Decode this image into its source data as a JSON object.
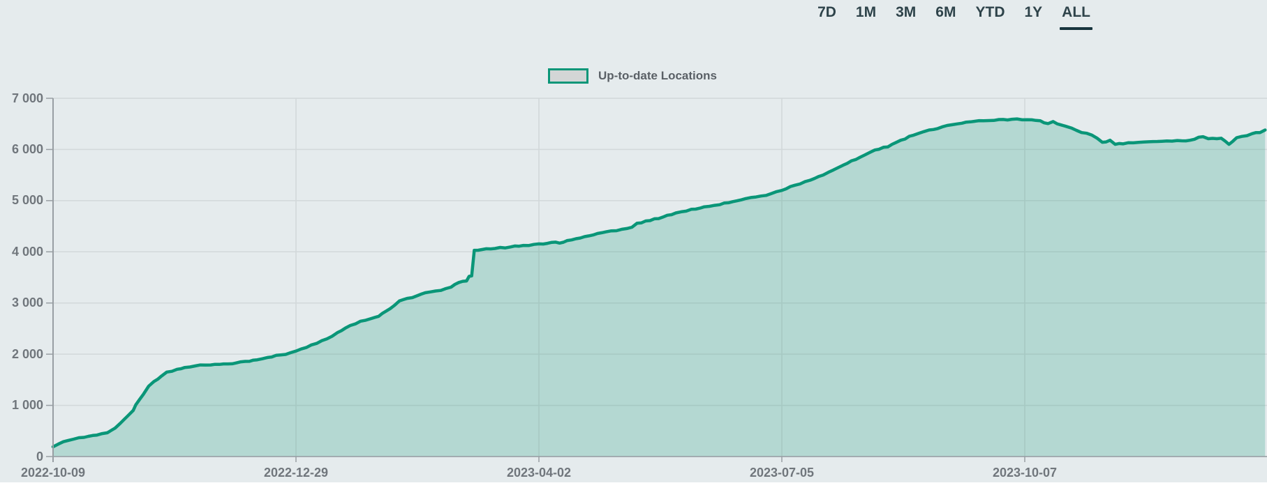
{
  "range_selector": {
    "options": [
      "7D",
      "1M",
      "3M",
      "6M",
      "YTD",
      "1Y",
      "ALL"
    ],
    "selected": "ALL"
  },
  "legend": {
    "label": "Up-to-date Locations"
  },
  "colors": {
    "background": "#e5ebed",
    "line": "#0a9678",
    "area_fill": "rgba(9,148,112,0.22)",
    "gridline": "#d2d8da",
    "axis_line": "#989ea3",
    "axis_text": "#70767c",
    "button_text": "#2e434a",
    "selected_underline": "#17343d",
    "legend_text": "#5a6066",
    "legend_swatch_fill": "#d3d6d6"
  },
  "chart_data": {
    "type": "area",
    "title": "",
    "legend_entries": [
      "Up-to-date Locations"
    ],
    "legend_position": "top-center",
    "grid": true,
    "xlabel": "",
    "ylabel": "",
    "ylim": [
      0,
      7000
    ],
    "y_tick_values": [
      0,
      1000,
      2000,
      3000,
      4000,
      5000,
      6000,
      7000
    ],
    "y_tick_labels": [
      "0",
      "1 000",
      "2 000",
      "3 000",
      "4 000",
      "5 000",
      "6 000",
      "7 000"
    ],
    "x_tick_labels": [
      "2022-10-09",
      "2022-12-29",
      "2023-04-02",
      "2023-07-05",
      "2023-10-07"
    ],
    "x_tick_index": [
      0,
      94,
      188,
      282,
      376
    ],
    "x_index_max": 469,
    "series": [
      {
        "name": "Up-to-date Locations",
        "points": [
          [
            0,
            190
          ],
          [
            4,
            290
          ],
          [
            8,
            340
          ],
          [
            12,
            375
          ],
          [
            17,
            420
          ],
          [
            21,
            465
          ],
          [
            24,
            555
          ],
          [
            26,
            650
          ],
          [
            29,
            800
          ],
          [
            31,
            900
          ],
          [
            32,
            1010
          ],
          [
            35,
            1220
          ],
          [
            37,
            1375
          ],
          [
            39,
            1465
          ],
          [
            42,
            1575
          ],
          [
            44,
            1650
          ],
          [
            48,
            1705
          ],
          [
            51,
            1740
          ],
          [
            55,
            1770
          ],
          [
            61,
            1790
          ],
          [
            66,
            1810
          ],
          [
            71,
            1830
          ],
          [
            76,
            1860
          ],
          [
            79,
            1890
          ],
          [
            83,
            1935
          ],
          [
            88,
            1985
          ],
          [
            92,
            2030
          ],
          [
            94,
            2060
          ],
          [
            98,
            2130
          ],
          [
            102,
            2210
          ],
          [
            106,
            2300
          ],
          [
            110,
            2420
          ],
          [
            115,
            2560
          ],
          [
            119,
            2645
          ],
          [
            123,
            2695
          ],
          [
            126,
            2740
          ],
          [
            129,
            2845
          ],
          [
            132,
            2950
          ],
          [
            134,
            3040
          ],
          [
            137,
            3090
          ],
          [
            141,
            3145
          ],
          [
            144,
            3200
          ],
          [
            150,
            3245
          ],
          [
            154,
            3310
          ],
          [
            157,
            3400
          ],
          [
            160,
            3430
          ],
          [
            161,
            3520
          ],
          [
            162,
            3530
          ],
          [
            163,
            4030
          ],
          [
            166,
            4045
          ],
          [
            171,
            4065
          ],
          [
            177,
            4095
          ],
          [
            182,
            4125
          ],
          [
            188,
            4155
          ],
          [
            193,
            4185
          ],
          [
            196,
            4170
          ],
          [
            199,
            4220
          ],
          [
            204,
            4270
          ],
          [
            209,
            4330
          ],
          [
            214,
            4390
          ],
          [
            220,
            4440
          ],
          [
            224,
            4480
          ],
          [
            226,
            4560
          ],
          [
            231,
            4610
          ],
          [
            236,
            4680
          ],
          [
            241,
            4760
          ],
          [
            247,
            4830
          ],
          [
            252,
            4880
          ],
          [
            258,
            4920
          ],
          [
            263,
            4980
          ],
          [
            268,
            5040
          ],
          [
            274,
            5090
          ],
          [
            278,
            5140
          ],
          [
            282,
            5200
          ],
          [
            287,
            5300
          ],
          [
            293,
            5400
          ],
          [
            298,
            5500
          ],
          [
            304,
            5650
          ],
          [
            309,
            5780
          ],
          [
            314,
            5890
          ],
          [
            318,
            5990
          ],
          [
            323,
            6050
          ],
          [
            328,
            6180
          ],
          [
            333,
            6280
          ],
          [
            339,
            6380
          ],
          [
            344,
            6440
          ],
          [
            350,
            6500
          ],
          [
            355,
            6540
          ],
          [
            360,
            6560
          ],
          [
            366,
            6585
          ],
          [
            371,
            6590
          ],
          [
            377,
            6580
          ],
          [
            382,
            6560
          ],
          [
            385,
            6505
          ],
          [
            387,
            6545
          ],
          [
            390,
            6480
          ],
          [
            394,
            6420
          ],
          [
            398,
            6330
          ],
          [
            402,
            6280
          ],
          [
            404,
            6220
          ],
          [
            406,
            6140
          ],
          [
            409,
            6180
          ],
          [
            411,
            6100
          ],
          [
            414,
            6110
          ],
          [
            418,
            6130
          ],
          [
            424,
            6150
          ],
          [
            429,
            6160
          ],
          [
            435,
            6175
          ],
          [
            440,
            6180
          ],
          [
            445,
            6250
          ],
          [
            447,
            6210
          ],
          [
            452,
            6220
          ],
          [
            455,
            6100
          ],
          [
            458,
            6230
          ],
          [
            462,
            6270
          ],
          [
            464,
            6310
          ],
          [
            467,
            6330
          ],
          [
            469,
            6380
          ]
        ]
      }
    ]
  }
}
